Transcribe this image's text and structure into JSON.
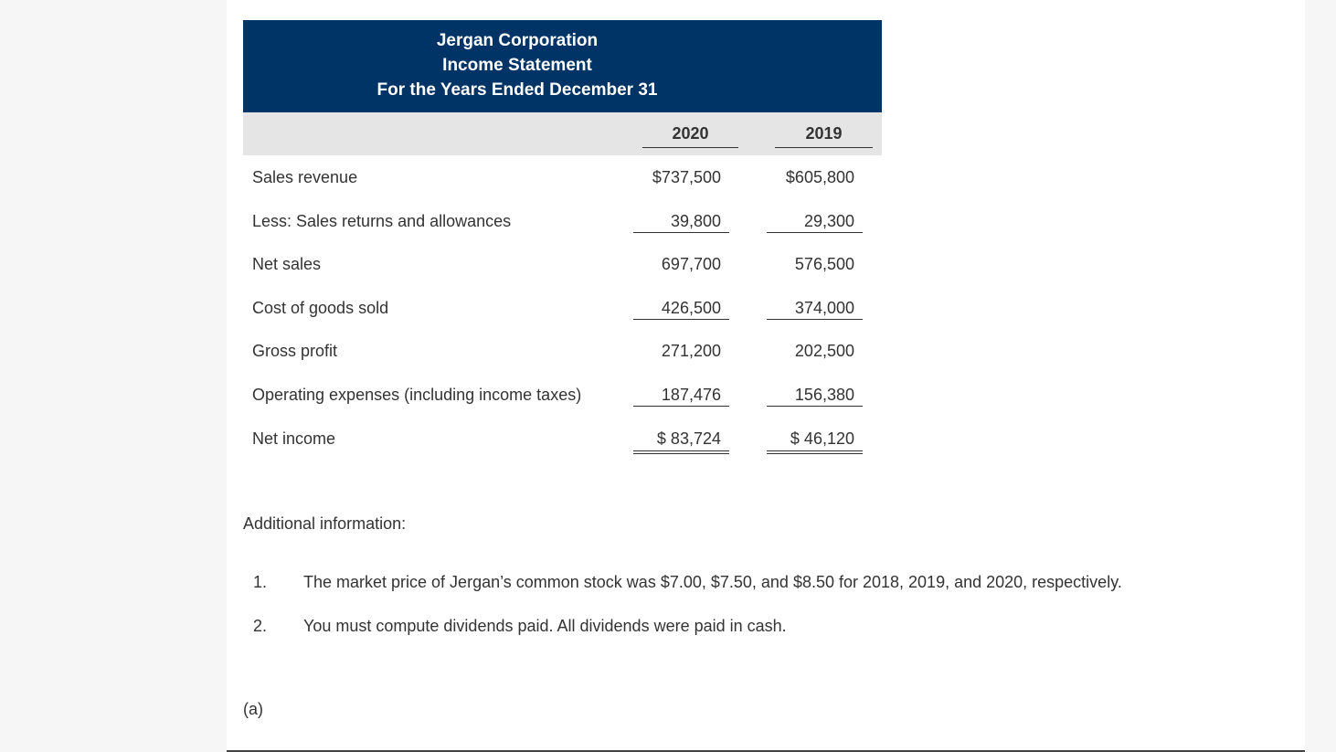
{
  "header": {
    "company": "Jergan Corporation",
    "statement": "Income Statement",
    "period": "For the Years Ended December 31"
  },
  "table": {
    "columns": [
      "2020",
      "2019"
    ],
    "rows": [
      [
        "Sales revenue",
        "$737,500",
        "$605,800"
      ],
      [
        "Less: Sales returns and allowances",
        "39,800",
        "29,300"
      ],
      [
        "Net sales",
        "697,700",
        "576,500"
      ],
      [
        "Cost of goods sold",
        "426,500",
        "374,000"
      ],
      [
        "Gross profit",
        "271,200",
        "202,500"
      ],
      [
        "Operating expenses (including income taxes)",
        "187,476",
        "156,380"
      ],
      [
        "Net income",
        "$ 83,724",
        "$ 46,120"
      ]
    ]
  },
  "additional": {
    "title": "Additional information:",
    "items": [
      {
        "number": "1.",
        "text": "The market price of Jergan’s common stock was $7.00, $7.50, and $8.50 for 2018, 2019, and 2020, respectively."
      },
      {
        "number": "2.",
        "text": "You must compute dividends paid. All dividends were paid in cash."
      }
    ]
  },
  "part": "(a)"
}
